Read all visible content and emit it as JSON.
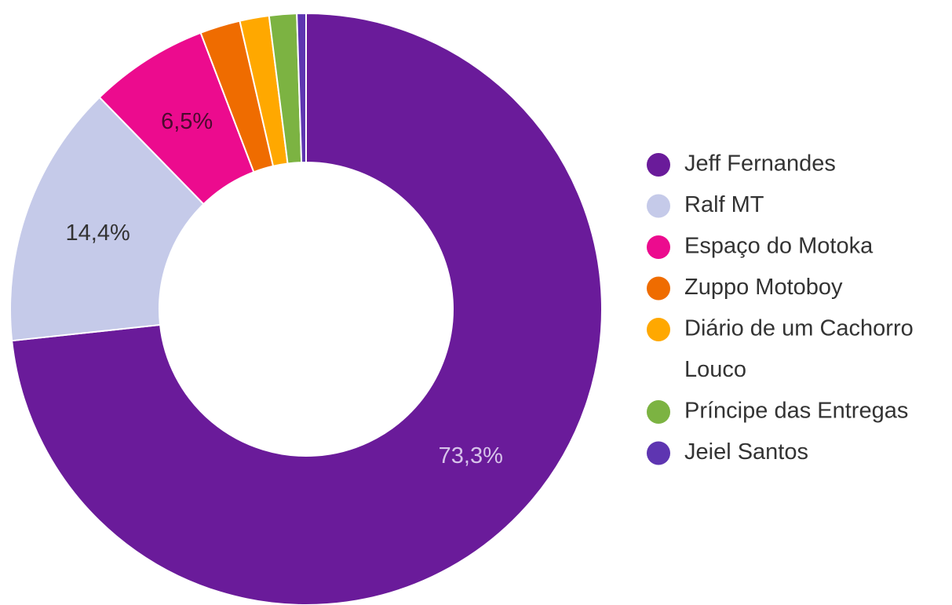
{
  "chart_data": {
    "type": "pie",
    "donut": true,
    "title": "",
    "legend_position": "right",
    "slices": [
      {
        "label": "Jeff Fernandes",
        "value": 73.3,
        "display": "73,3%",
        "color": "#6a1b9a",
        "label_color": "#d7c3ea"
      },
      {
        "label": "Ralf MT",
        "value": 14.4,
        "display": "14,4%",
        "color": "#c5cae9",
        "label_color": "#333333"
      },
      {
        "label": "Espaço do Motoka",
        "value": 6.5,
        "display": "6,5%",
        "color": "#ec0b8e",
        "label_color": "#4a0a2e"
      },
      {
        "label": "Zuppo Motoboy",
        "value": 2.2,
        "display": "",
        "color": "#ef6c00",
        "label_color": "#333333"
      },
      {
        "label": "Diário de um Cachorro Louco",
        "value": 1.6,
        "display": "",
        "color": "#ffa800",
        "label_color": "#333333"
      },
      {
        "label": "Príncipe das Entregas",
        "value": 1.5,
        "display": "",
        "color": "#7cb342",
        "label_color": "#333333"
      },
      {
        "label": "Jeiel Santos",
        "value": 0.5,
        "display": "",
        "color": "#5e35b1",
        "label_color": "#333333"
      }
    ]
  }
}
